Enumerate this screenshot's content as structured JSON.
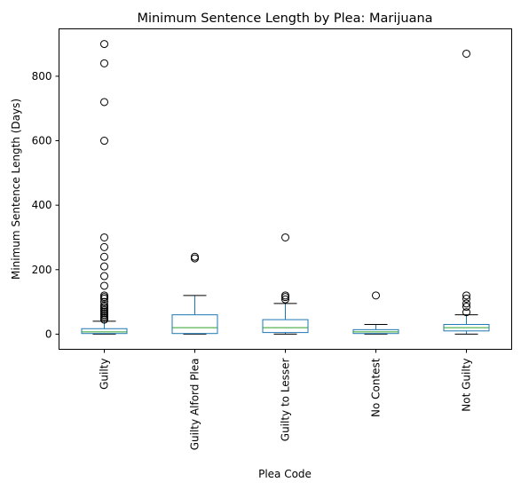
{
  "chart_data": {
    "type": "box",
    "title": "Minimum Sentence Length by Plea: Marijuana",
    "xlabel": "Plea Code",
    "ylabel": "Minimum Sentence Length (Days)",
    "ylim": [
      -47,
      947
    ],
    "yticks": [
      0,
      200,
      400,
      600,
      800
    ],
    "grid": false,
    "colors": {
      "box": "#1f77b4",
      "median": "#2ca02c",
      "whisker": "#000000",
      "flier": "#000000"
    },
    "categories": [
      "Guilty",
      "Guilty Alford Plea",
      "Guilty to Lesser",
      "No Contest",
      "Not Guilty"
    ],
    "boxes": [
      {
        "category": "Guilty",
        "whislo": 0,
        "q1": 2,
        "med": 7,
        "q3": 17,
        "whishi": 40,
        "fliers": [
          45,
          50,
          55,
          60,
          65,
          70,
          75,
          80,
          85,
          90,
          100,
          110,
          115,
          120,
          150,
          180,
          210,
          240,
          270,
          300,
          600,
          720,
          840,
          900
        ]
      },
      {
        "category": "Guilty Alford Plea",
        "whislo": 0,
        "q1": 2,
        "med": 20,
        "q3": 60,
        "whishi": 120,
        "fliers": [
          235,
          240
        ]
      },
      {
        "category": "Guilty to Lesser",
        "whislo": 0,
        "q1": 5,
        "med": 20,
        "q3": 45,
        "whishi": 95,
        "fliers": [
          108,
          115,
          120,
          300
        ]
      },
      {
        "category": "No Contest",
        "whislo": 0,
        "q1": 2,
        "med": 7,
        "q3": 14,
        "whishi": 30,
        "fliers": [
          120
        ]
      },
      {
        "category": "Not Guilty",
        "whislo": 0,
        "q1": 10,
        "med": 20,
        "q3": 30,
        "whishi": 60,
        "fliers": [
          68,
          85,
          95,
          110,
          120,
          870
        ]
      }
    ]
  }
}
